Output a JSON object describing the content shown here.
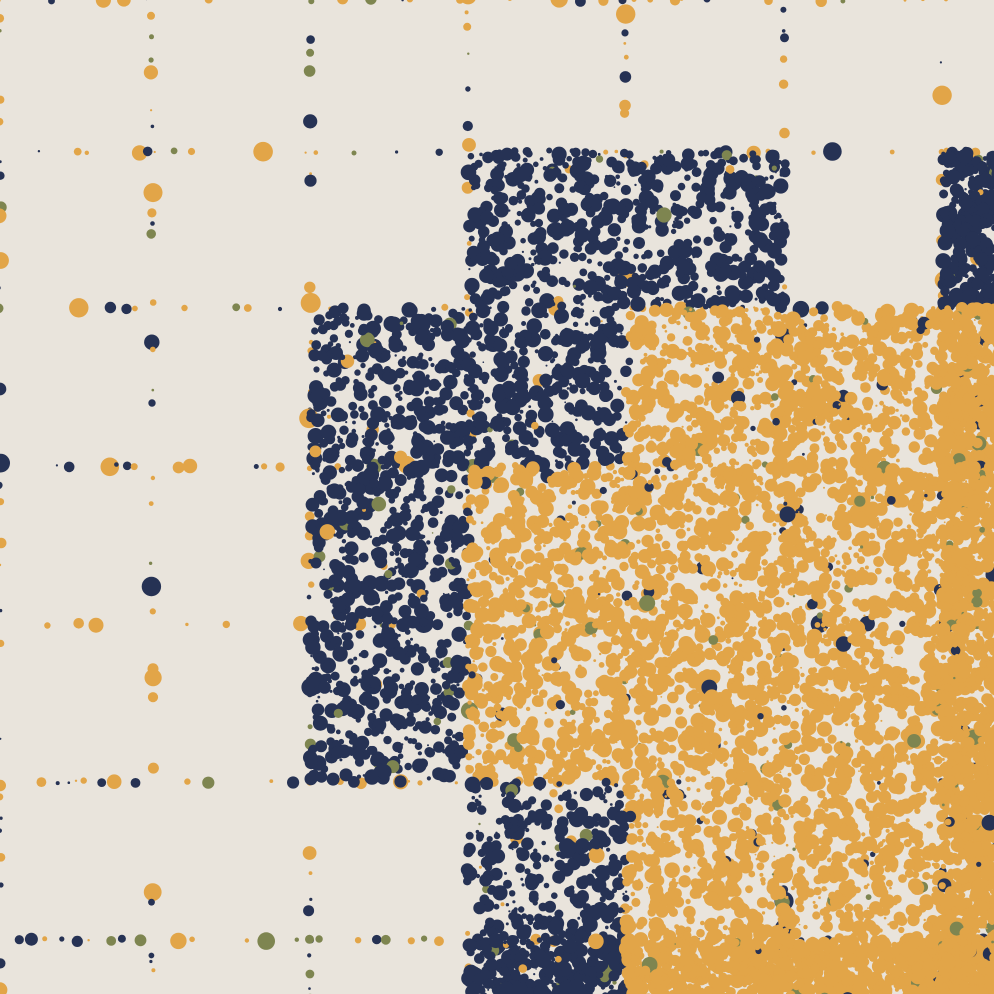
{
  "artwork": {
    "style": "generative dot grid",
    "palette": {
      "background": "#e9e4dc",
      "navy": "#263254",
      "orange": "#e2a548",
      "olive": "#7e8550"
    },
    "grid": {
      "columns": 7,
      "rows": 7
    },
    "blocks": [
      {
        "col": 3,
        "row": 1,
        "dominant": "navy"
      },
      {
        "col": 4,
        "row": 1,
        "dominant": "navy"
      },
      {
        "col": 6,
        "row": 1,
        "dominant": "navy"
      },
      {
        "col": 2,
        "row": 2,
        "dominant": "navy"
      },
      {
        "col": 3,
        "row": 2,
        "dominant": "navy"
      },
      {
        "col": 4,
        "row": 2,
        "dominant": "orange"
      },
      {
        "col": 5,
        "row": 2,
        "dominant": "orange"
      },
      {
        "col": 6,
        "row": 2,
        "dominant": "orange"
      },
      {
        "col": 2,
        "row": 3,
        "dominant": "navy"
      },
      {
        "col": 3,
        "row": 3,
        "dominant": "orange"
      },
      {
        "col": 4,
        "row": 3,
        "dominant": "orange"
      },
      {
        "col": 5,
        "row": 3,
        "dominant": "orange"
      },
      {
        "col": 6,
        "row": 3,
        "dominant": "orange"
      },
      {
        "col": 2,
        "row": 4,
        "dominant": "navy"
      },
      {
        "col": 3,
        "row": 4,
        "dominant": "orange"
      },
      {
        "col": 4,
        "row": 4,
        "dominant": "orange"
      },
      {
        "col": 5,
        "row": 4,
        "dominant": "orange"
      },
      {
        "col": 6,
        "row": 4,
        "dominant": "orange"
      },
      {
        "col": 3,
        "row": 5,
        "dominant": "navy"
      },
      {
        "col": 4,
        "row": 5,
        "dominant": "orange"
      },
      {
        "col": 5,
        "row": 5,
        "dominant": "orange"
      },
      {
        "col": 6,
        "row": 5,
        "dominant": "orange"
      },
      {
        "col": 3,
        "row": 6,
        "dominant": "navy"
      },
      {
        "col": 4,
        "row": 6,
        "dominant": "orange"
      },
      {
        "col": 5,
        "row": 6,
        "dominant": "orange"
      },
      {
        "col": 6,
        "row": 6,
        "dominant": "orange"
      }
    ]
  }
}
